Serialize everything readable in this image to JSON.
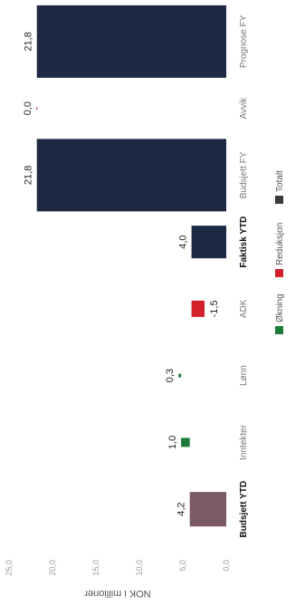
{
  "chart_data": {
    "type": "bar",
    "chart_subtype": "waterfall",
    "orientation": "rotated-90",
    "ylabel": "NOK i millioner",
    "ylim": [
      0,
      25
    ],
    "y_ticks": [
      "0,0",
      "5,0",
      "10,0",
      "15,0",
      "20,0",
      "25,0"
    ],
    "categories": [
      "Budsjett YTD",
      "Inntekter",
      "Lønn",
      "ADK",
      "Faktisk YTD",
      "Budsjett FY",
      "Avvik",
      "Prognose FY"
    ],
    "values": [
      4.2,
      1.0,
      0.3,
      -1.5,
      4.0,
      21.8,
      0.0,
      21.8
    ],
    "value_labels": [
      "4,2",
      "1,0",
      "0,3",
      "-1,5",
      "4,0",
      "21,8",
      "0,0",
      "21,8"
    ],
    "bar_starts": [
      0,
      4.2,
      5.2,
      4.0,
      0,
      0,
      21.8,
      0
    ],
    "bar_types": [
      "Totalt",
      "Økning",
      "Økning",
      "Reduksjon",
      "Totalt",
      "Totalt",
      "Reduksjon",
      "Totalt"
    ],
    "bar_colors": [
      "#7a5a66",
      "#1c7a3c",
      "#1c7a3c",
      "#d4202a",
      "#1c2a44",
      "#1c2a44",
      "#d4202a",
      "#1c2a44"
    ],
    "bold_categories": [
      "Budsjett YTD",
      "Faktisk YTD"
    ],
    "legend": {
      "placement": "bottom",
      "items": [
        {
          "label": "Økning",
          "color": "#1c7a3c"
        },
        {
          "label": "Reduksjon",
          "color": "#d4202a"
        },
        {
          "label": "Totalt",
          "color": "#3a3a3a"
        }
      ]
    },
    "grid": false
  }
}
